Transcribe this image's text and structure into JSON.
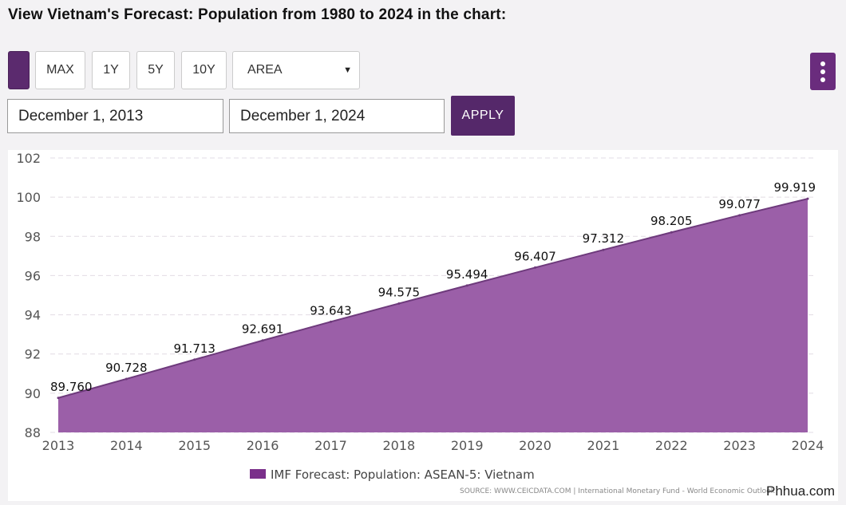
{
  "page": {
    "title": "View Vietnam's Forecast: Population from 1980 to 2024 in the chart:"
  },
  "toolbar": {
    "buttons": [
      "MAX",
      "1Y",
      "5Y",
      "10Y"
    ],
    "chart_type_select": "AREA",
    "swatch_color": "#5b2a6e",
    "menu_color": "#6a2c7d"
  },
  "date_range": {
    "start": "December 1, 2013",
    "end": "December 1, 2024",
    "apply_label": "APPLY"
  },
  "chart_data": {
    "type": "area",
    "x": [
      2013,
      2014,
      2015,
      2016,
      2017,
      2018,
      2019,
      2020,
      2021,
      2022,
      2023,
      2024
    ],
    "series": [
      {
        "name": "IMF Forecast: Population: ASEAN-5: Vietnam",
        "values": [
          89.76,
          90.728,
          91.713,
          92.691,
          93.643,
          94.575,
          95.494,
          96.407,
          97.312,
          98.205,
          99.077,
          99.919
        ],
        "labels": [
          "89.760",
          "90.728",
          "91.713",
          "92.691",
          "93.643",
          "94.575",
          "95.494",
          "96.407",
          "97.312",
          "98.205",
          "99.077",
          "99.919"
        ],
        "color": "#9b5fa8"
      }
    ],
    "ylim": [
      88,
      102
    ],
    "yticks": [
      88,
      90,
      92,
      94,
      96,
      98,
      100,
      102
    ],
    "grid": true,
    "legend": "bottom-center",
    "source": "SOURCE: WWW.CEICDATA.COM | International Monetary Fund - World Economic Outlook"
  },
  "watermark": "Phhua.com"
}
